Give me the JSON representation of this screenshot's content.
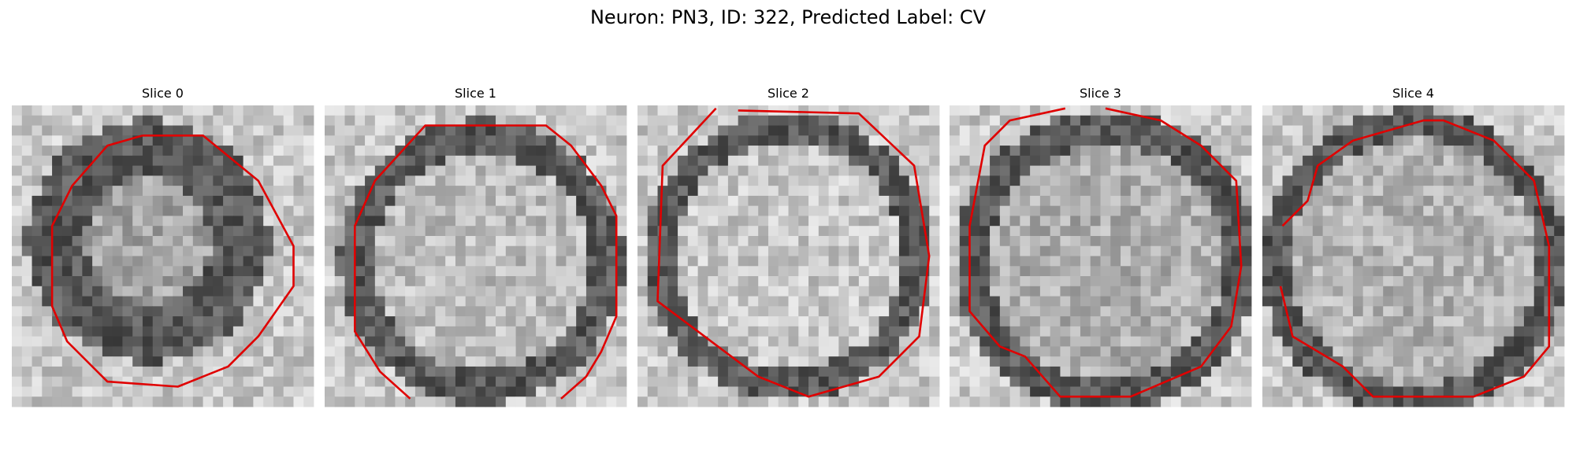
{
  "title": "Neuron: PN3, ID: 322, Predicted Label: CV",
  "panels": [
    {
      "title": "Slice 0"
    },
    {
      "title": "Slice 1"
    },
    {
      "title": "Slice 2"
    },
    {
      "title": "Slice 3"
    },
    {
      "title": "Slice 4"
    }
  ]
}
